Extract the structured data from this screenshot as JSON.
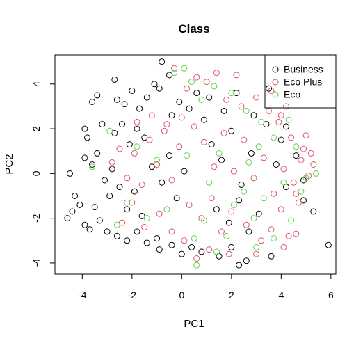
{
  "chart_data": {
    "type": "scatter",
    "title": "Class",
    "xlabel": "PC1",
    "ylabel": "PC2",
    "xlim": [
      -5.1,
      6.2
    ],
    "ylim": [
      -4.5,
      5.3
    ],
    "xticks": [
      -4,
      -2,
      0,
      2,
      4,
      6
    ],
    "yticks": [
      -4,
      -2,
      0,
      2,
      4
    ],
    "legend_position": "top-right",
    "legend_boxed": true,
    "marker": "open-circle",
    "series": [
      {
        "name": "Business",
        "color": "#000000",
        "points": [
          [
            -4.6,
            -2.0
          ],
          [
            -4.4,
            -1.7
          ],
          [
            -4.3,
            -1.0
          ],
          [
            -4.5,
            0.0
          ],
          [
            -4.1,
            -1.4
          ],
          [
            -3.9,
            2.0
          ],
          [
            -3.8,
            1.6
          ],
          [
            -3.6,
            3.2
          ],
          [
            -3.4,
            3.5
          ],
          [
            -3.2,
            2.2
          ],
          [
            -3.9,
            -2.3
          ],
          [
            -3.7,
            -2.5
          ],
          [
            -3.5,
            -1.5
          ],
          [
            -3.3,
            -2.1
          ],
          [
            -3.0,
            -2.6
          ],
          [
            -3.9,
            0.7
          ],
          [
            -3.6,
            0.4
          ],
          [
            -3.4,
            0.9
          ],
          [
            -3.1,
            -0.3
          ],
          [
            -2.8,
            0.2
          ],
          [
            -2.6,
            3.3
          ],
          [
            -2.3,
            3.1
          ],
          [
            -2.0,
            3.7
          ],
          [
            -1.7,
            2.9
          ],
          [
            -1.4,
            3.4
          ],
          [
            -2.7,
            1.8
          ],
          [
            -2.4,
            2.2
          ],
          [
            -2.1,
            1.3
          ],
          [
            -1.8,
            2.0
          ],
          [
            -1.5,
            1.6
          ],
          [
            -2.9,
            -1.0
          ],
          [
            -2.5,
            -0.6
          ],
          [
            -2.2,
            -1.6
          ],
          [
            -1.9,
            -0.8
          ],
          [
            -1.6,
            -1.9
          ],
          [
            -2.6,
            -2.8
          ],
          [
            -2.2,
            -3.0
          ],
          [
            -1.8,
            -2.6
          ],
          [
            -1.4,
            -3.1
          ],
          [
            -1.0,
            -2.9
          ],
          [
            -2.7,
            4.2
          ],
          [
            -1.1,
            4.0
          ],
          [
            -0.9,
            3.8
          ],
          [
            -0.8,
            5.0
          ],
          [
            -0.5,
            4.4
          ],
          [
            -0.4,
            2.6
          ],
          [
            -0.1,
            3.2
          ],
          [
            0.3,
            2.9
          ],
          [
            0.6,
            3.6
          ],
          [
            0.9,
            2.4
          ],
          [
            -1.2,
            0.3
          ],
          [
            -0.8,
            -0.4
          ],
          [
            -0.5,
            0.8
          ],
          [
            -0.2,
            -1.1
          ],
          [
            0.1,
            0.1
          ],
          [
            -0.9,
            -3.4
          ],
          [
            -0.4,
            -3.2
          ],
          [
            0.0,
            -3.6
          ],
          [
            0.4,
            -3.3
          ],
          [
            0.8,
            -3.5
          ],
          [
            1.2,
            1.3
          ],
          [
            1.6,
            0.6
          ],
          [
            2.0,
            1.9
          ],
          [
            2.4,
            -0.5
          ],
          [
            2.8,
            0.9
          ],
          [
            1.4,
            -1.6
          ],
          [
            1.9,
            -2.2
          ],
          [
            2.3,
            -1.2
          ],
          [
            2.7,
            -2.6
          ],
          [
            3.1,
            -1.8
          ],
          [
            1.1,
            3.4
          ],
          [
            1.7,
            2.8
          ],
          [
            2.2,
            3.6
          ],
          [
            2.9,
            2.6
          ],
          [
            3.4,
            2.2
          ],
          [
            2.3,
            -4.1
          ],
          [
            2.6,
            -3.9
          ],
          [
            3.6,
            -3.7
          ],
          [
            2.0,
            -3.3
          ],
          [
            1.5,
            -3.7
          ],
          [
            3.8,
            0.4
          ],
          [
            4.2,
            -0.6
          ],
          [
            4.6,
            0.8
          ],
          [
            4.0,
            1.5
          ],
          [
            4.9,
            -0.3
          ],
          [
            3.5,
            3.8
          ],
          [
            4.2,
            2.1
          ],
          [
            5.3,
            -1.7
          ],
          [
            5.9,
            -3.2
          ],
          [
            4.9,
            -1.2
          ]
        ]
      },
      {
        "name": "Eco Plus",
        "color": "#df536b",
        "points": [
          [
            -2.8,
            0.5
          ],
          [
            -2.5,
            1.1
          ],
          [
            -2.2,
            -0.2
          ],
          [
            -1.9,
            0.9
          ],
          [
            -1.6,
            -0.5
          ],
          [
            -1.3,
            1.5
          ],
          [
            -1.0,
            0.4
          ],
          [
            -0.7,
            1.9
          ],
          [
            -0.4,
            -0.3
          ],
          [
            -0.1,
            1.2
          ],
          [
            -1.8,
            2.3
          ],
          [
            -1.2,
            2.6
          ],
          [
            -0.6,
            2.2
          ],
          [
            0.0,
            2.5
          ],
          [
            0.5,
            2.1
          ],
          [
            0.9,
            1.4
          ],
          [
            1.3,
            0.3
          ],
          [
            1.7,
            1.8
          ],
          [
            2.1,
            0.1
          ],
          [
            2.5,
            1.5
          ],
          [
            2.9,
            -0.2
          ],
          [
            3.3,
            0.7
          ],
          [
            3.7,
            -0.9
          ],
          [
            4.1,
            0.2
          ],
          [
            4.5,
            -0.4
          ],
          [
            4.8,
            0.6
          ],
          [
            5.1,
            -0.1
          ],
          [
            5.3,
            0.4
          ],
          [
            4.4,
            1.6
          ],
          [
            3.9,
            2.3
          ],
          [
            0.2,
            3.8
          ],
          [
            0.6,
            4.3
          ],
          [
            1.0,
            4.1
          ],
          [
            1.4,
            4.5
          ],
          [
            -0.3,
            4.7
          ],
          [
            1.8,
            3.3
          ],
          [
            2.4,
            3.0
          ],
          [
            3.0,
            3.4
          ],
          [
            3.5,
            2.8
          ],
          [
            4.0,
            2.6
          ],
          [
            0.3,
            -1.4
          ],
          [
            0.8,
            -2.0
          ],
          [
            1.2,
            -1.1
          ],
          [
            1.6,
            -2.6
          ],
          [
            2.0,
            -1.7
          ],
          [
            2.6,
            -2.3
          ],
          [
            3.2,
            -3.0
          ],
          [
            3.6,
            -2.5
          ],
          [
            4.0,
            -1.6
          ],
          [
            4.3,
            -2.8
          ],
          [
            0.1,
            -3.0
          ],
          [
            0.6,
            -3.8
          ],
          [
            1.1,
            -3.4
          ],
          [
            1.9,
            -3.6
          ],
          [
            3.0,
            -3.6
          ],
          [
            -1.5,
            -2.4
          ],
          [
            -0.9,
            -1.8
          ],
          [
            -0.4,
            -2.6
          ],
          [
            -2.0,
            -1.3
          ],
          [
            -2.4,
            -2.2
          ],
          [
            4.6,
            -0.9
          ],
          [
            4.9,
            1.1
          ],
          [
            5.2,
            0.9
          ],
          [
            4.2,
            3.0
          ],
          [
            4.7,
            -1.3
          ],
          [
            4.6,
            -2.7
          ],
          [
            4.1,
            -3.3
          ],
          [
            5.0,
            1.7
          ],
          [
            3.6,
            3.7
          ],
          [
            2.2,
            4.4
          ]
        ]
      },
      {
        "name": "Eco",
        "color": "#61d04f",
        "points": [
          [
            -2.2,
            -1.3
          ],
          [
            -1.8,
            1.2
          ],
          [
            -1.4,
            -2.0
          ],
          [
            -1.0,
            0.6
          ],
          [
            -0.6,
            -1.6
          ],
          [
            -0.3,
            4.5
          ],
          [
            0.1,
            4.7
          ],
          [
            0.4,
            4.1
          ],
          [
            0.8,
            3.3
          ],
          [
            1.3,
            3.9
          ],
          [
            0.5,
            -2.9
          ],
          [
            0.9,
            -2.1
          ],
          [
            1.4,
            -3.5
          ],
          [
            1.8,
            -2.8
          ],
          [
            0.6,
            -4.1
          ],
          [
            2.1,
            -1.4
          ],
          [
            2.5,
            -0.8
          ],
          [
            2.9,
            -2.0
          ],
          [
            3.3,
            -1.1
          ],
          [
            3.7,
            -2.9
          ],
          [
            2.0,
            3.6
          ],
          [
            2.6,
            2.8
          ],
          [
            3.2,
            2.3
          ],
          [
            3.7,
            1.6
          ],
          [
            4.3,
            2.4
          ],
          [
            4.6,
            1.2
          ],
          [
            5.0,
            -0.2
          ],
          [
            5.4,
            0.0
          ],
          [
            4.8,
            -0.8
          ],
          [
            4.1,
            -0.4
          ],
          [
            2.7,
            0.5
          ],
          [
            3.1,
            1.2
          ],
          [
            1.5,
            0.9
          ],
          [
            1.1,
            -0.4
          ],
          [
            0.2,
            0.8
          ],
          [
            -2.9,
            1.9
          ],
          [
            -3.6,
            0.3
          ],
          [
            -2.6,
            -2.3
          ],
          [
            3.0,
            -3.3
          ],
          [
            4.4,
            -2.1
          ]
        ]
      }
    ]
  }
}
